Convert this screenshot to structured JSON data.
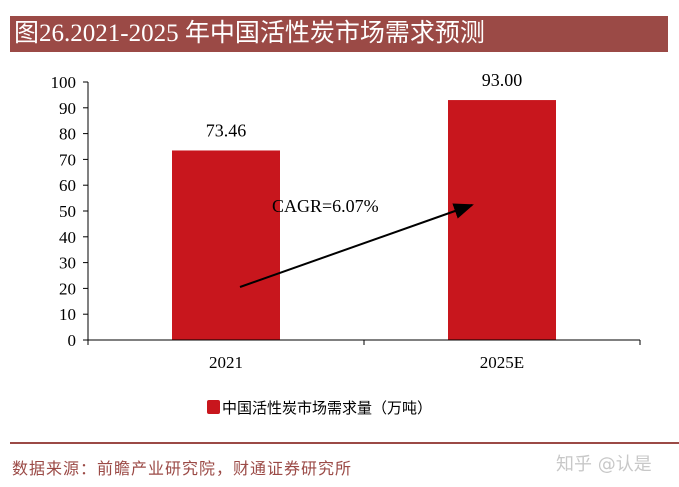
{
  "title": "图26.2021-2025 年中国活性炭市场需求预测",
  "source": "数据来源：前瞻产业研究院，财通证券研究所",
  "watermark": "知乎 @认是",
  "colors": {
    "bar": "#c8161d",
    "title_bg": "#9b4a46",
    "source_text": "#9b4a46"
  },
  "chart_data": {
    "type": "bar",
    "categories": [
      "2021",
      "2025E"
    ],
    "series": [
      {
        "name": "中国活性炭市场需求量（万吨）",
        "values": [
          73.46,
          93.0
        ]
      }
    ],
    "data_labels": [
      "73.46",
      "93.00"
    ],
    "ylim": [
      0,
      100
    ],
    "yticks": [
      0,
      10,
      20,
      30,
      40,
      50,
      60,
      70,
      80,
      90,
      100
    ],
    "grid": false,
    "legend_position": "bottom",
    "annotation": {
      "text": "CAGR=6.07%",
      "arrow": "from 2021 to 2025E"
    }
  }
}
